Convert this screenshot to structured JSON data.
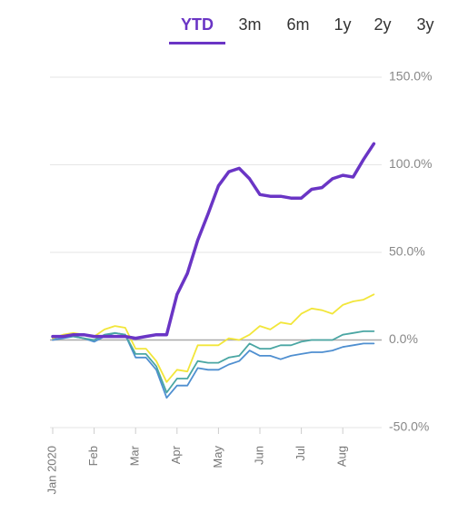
{
  "tabs": [
    "YTD",
    "3m",
    "6m",
    "1y",
    "2y",
    "3y"
  ],
  "active_tab": "YTD",
  "chart_data": {
    "type": "line",
    "categories": [
      "Jan 2020",
      null,
      null,
      null,
      "Feb",
      null,
      null,
      null,
      "Mar",
      null,
      null,
      null,
      "Apr",
      null,
      null,
      null,
      "May",
      null,
      null,
      null,
      "Jun",
      null,
      null,
      null,
      "Jul",
      null,
      null,
      null,
      "Aug",
      null,
      null,
      null
    ],
    "series": [
      {
        "color": "#4f8fd0",
        "values": [
          0,
          1,
          2,
          1,
          -1,
          2,
          4,
          3,
          -10,
          -10,
          -17,
          -33,
          -26,
          -26,
          -16,
          -17,
          -17,
          -14,
          -12,
          -6,
          -9,
          -9,
          -11,
          -9,
          -8,
          -7,
          -7,
          -6,
          -4,
          -3,
          -2,
          -2
        ]
      },
      {
        "color": "#4aa6a3",
        "values": [
          1,
          2,
          2,
          1,
          0,
          3,
          4,
          3,
          -8,
          -8,
          -15,
          -30,
          -22,
          -22,
          -12,
          -13,
          -13,
          -10,
          -9,
          -2,
          -5,
          -5,
          -3,
          -3,
          -1,
          0,
          0,
          0,
          3,
          4,
          5,
          5
        ]
      },
      {
        "color": "#f2e63a",
        "values": [
          1,
          3,
          4,
          3,
          2,
          6,
          8,
          7,
          -5,
          -5,
          -12,
          -24,
          -17,
          -18,
          -3,
          -3,
          -3,
          1,
          0,
          3,
          8,
          6,
          10,
          9,
          15,
          18,
          17,
          15,
          20,
          22,
          23,
          26
        ]
      },
      {
        "color": "#6a35c5",
        "values": [
          2,
          2,
          3,
          3,
          2,
          2,
          2,
          2,
          1,
          2,
          3,
          3,
          26,
          38,
          57,
          72,
          88,
          96,
          98,
          92,
          83,
          82,
          82,
          81,
          81,
          86,
          87,
          92,
          94,
          93,
          103,
          112
        ]
      }
    ],
    "ylim": [
      -50,
      150
    ],
    "yticks": [
      {
        "value": 150,
        "label": "150.0%"
      },
      {
        "value": 100,
        "label": "100.0%"
      },
      {
        "value": 50,
        "label": "50.0%"
      },
      {
        "value": 0,
        "label": "0.0%"
      },
      {
        "value": -50,
        "label": "-50.0%"
      }
    ],
    "grid": true
  }
}
